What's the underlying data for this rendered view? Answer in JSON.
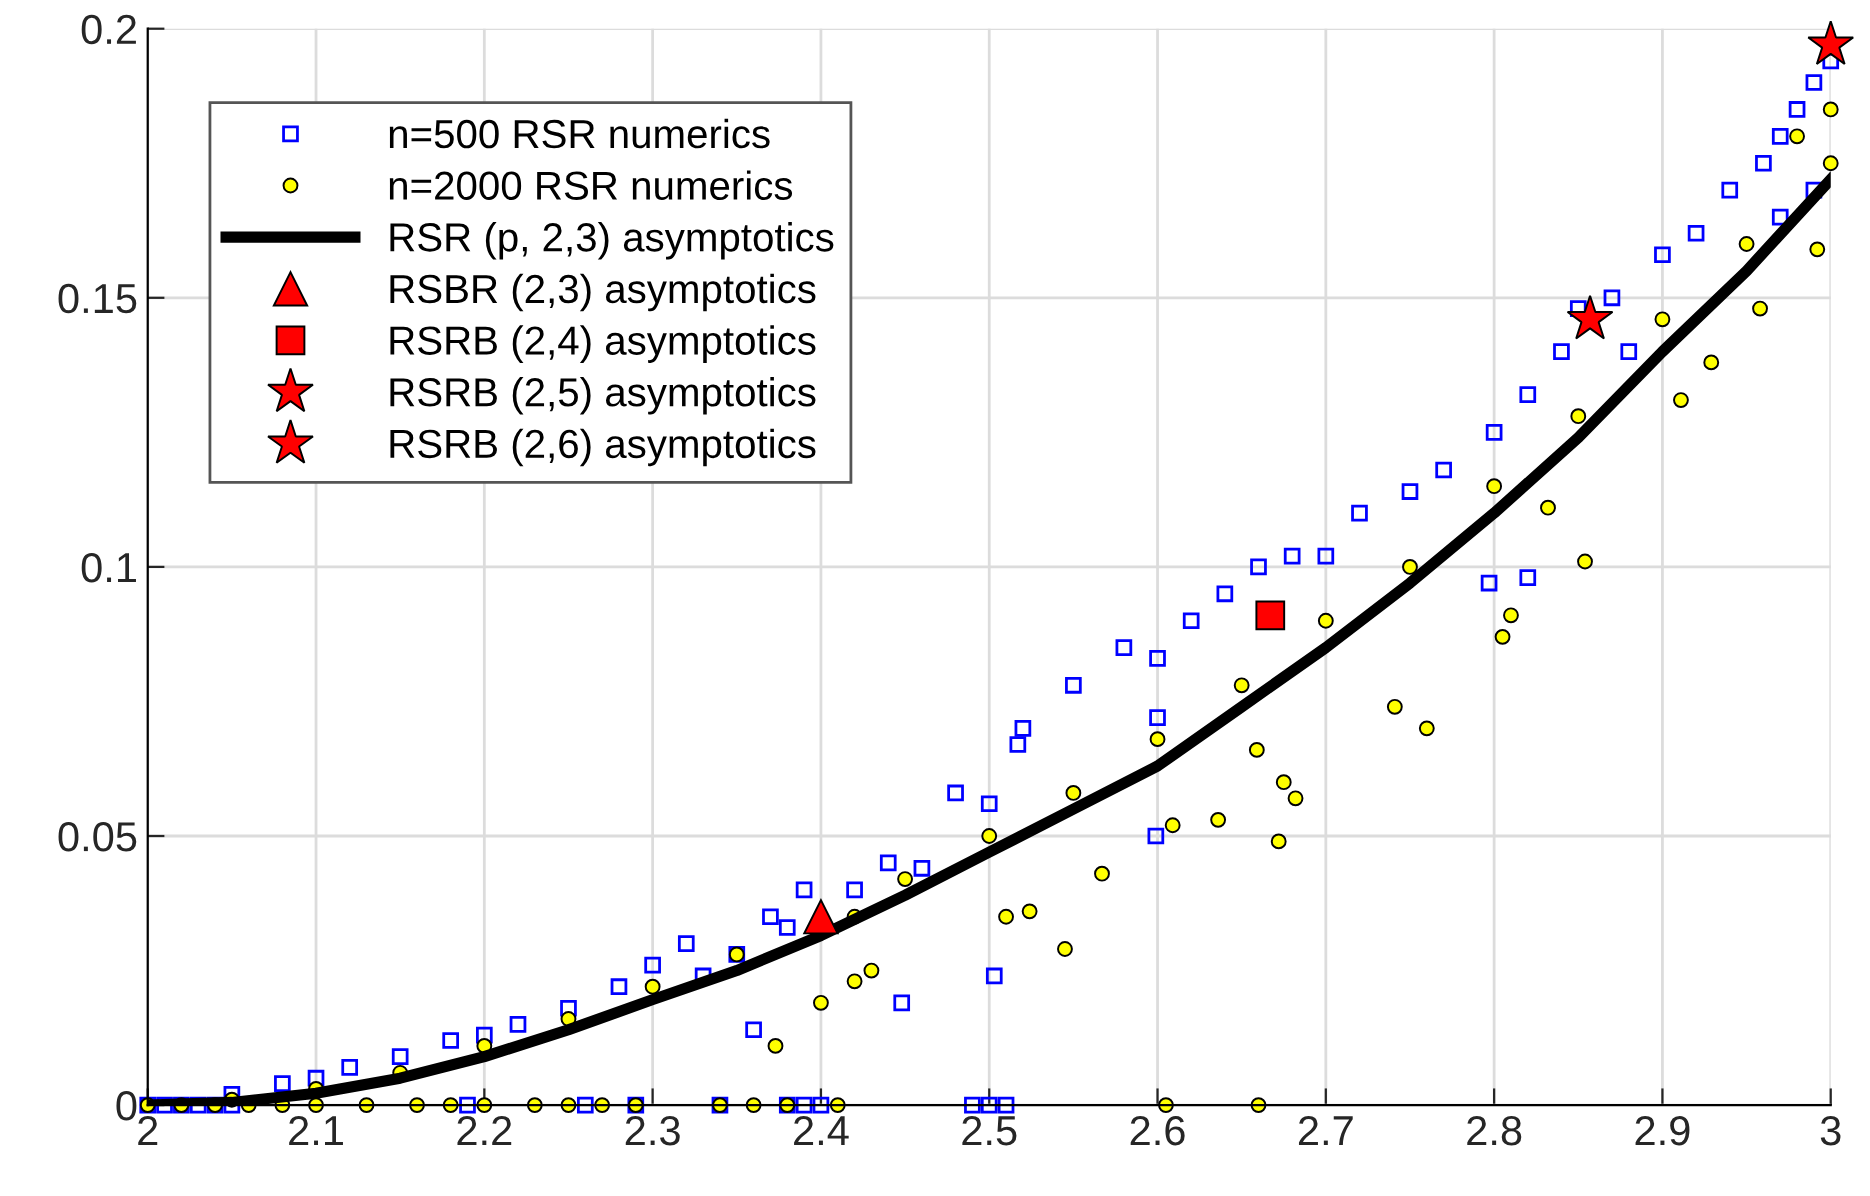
{
  "chart_data": {
    "type": "scatter",
    "xlim": [
      2,
      3
    ],
    "ylim": [
      0,
      0.2
    ],
    "xticks": [
      2,
      2.1,
      2.2,
      2.3,
      2.4,
      2.5,
      2.6,
      2.7,
      2.8,
      2.9,
      3
    ],
    "yticks": [
      0,
      0.05,
      0.1,
      0.15,
      0.2
    ],
    "grid": true,
    "legend": "top left",
    "series": [
      {
        "name": "n=500 RSR numerics",
        "marker": "square",
        "color": "#0000ff",
        "x": [
          2.0,
          2.01,
          2.02,
          2.03,
          2.04,
          2.05,
          2.19,
          2.26,
          2.29,
          2.34,
          2.38,
          2.39,
          2.4,
          2.49,
          2.5,
          2.51,
          2.05,
          2.08,
          2.1,
          2.12,
          2.15,
          2.18,
          2.2,
          2.22,
          2.25,
          2.28,
          2.3,
          2.32,
          2.33,
          2.35,
          2.36,
          2.37,
          2.38,
          2.39,
          2.42,
          2.44,
          2.448,
          2.46,
          2.48,
          2.5,
          2.517,
          2.52,
          2.503,
          2.55,
          2.58,
          2.6,
          2.62,
          2.6,
          2.599,
          2.64,
          2.66,
          2.68,
          2.7,
          2.72,
          2.75,
          2.77,
          2.797,
          2.82,
          2.8,
          2.82,
          2.84,
          2.85,
          2.87,
          2.88,
          2.9,
          2.92,
          2.94,
          2.96,
          2.97,
          2.98,
          2.99,
          3.0,
          2.97,
          2.99
        ],
        "values": [
          0,
          0,
          0,
          0,
          0,
          0,
          0,
          0,
          0,
          0,
          0,
          0,
          0,
          0,
          0,
          0,
          0.002,
          0.004,
          0.005,
          0.007,
          0.009,
          0.012,
          0.013,
          0.015,
          0.018,
          0.022,
          0.026,
          0.03,
          0.024,
          0.028,
          0.014,
          0.035,
          0.033,
          0.04,
          0.04,
          0.045,
          0.019,
          0.044,
          0.058,
          0.056,
          0.067,
          0.07,
          0.024,
          0.078,
          0.085,
          0.083,
          0.09,
          0.072,
          0.05,
          0.095,
          0.1,
          0.102,
          0.102,
          0.11,
          0.114,
          0.118,
          0.097,
          0.098,
          0.125,
          0.132,
          0.14,
          0.148,
          0.15,
          0.14,
          0.158,
          0.162,
          0.17,
          0.175,
          0.18,
          0.185,
          0.19,
          0.194,
          0.165,
          0.17
        ]
      },
      {
        "name": "n=2000 RSR numerics",
        "marker": "circle",
        "color": "#ffff00",
        "x": [
          2.0,
          2.02,
          2.04,
          2.06,
          2.08,
          2.1,
          2.13,
          2.16,
          2.18,
          2.2,
          2.23,
          2.25,
          2.27,
          2.29,
          2.34,
          2.36,
          2.38,
          2.41,
          2.605,
          2.66,
          2.05,
          2.1,
          2.15,
          2.2,
          2.25,
          2.3,
          2.35,
          2.42,
          2.45,
          2.5,
          2.55,
          2.6,
          2.65,
          2.7,
          2.75,
          2.8,
          2.85,
          2.9,
          2.95,
          3.0,
          2.98,
          3.0,
          2.373,
          2.4,
          2.42,
          2.43,
          2.51,
          2.545,
          2.524,
          2.567,
          2.609,
          2.636,
          2.672,
          2.682,
          2.675,
          2.659,
          2.741,
          2.76,
          2.805,
          2.81,
          2.854,
          2.832,
          2.929,
          2.911,
          2.992,
          2.958
        ],
        "values": [
          0,
          0,
          0,
          0,
          0,
          0,
          0,
          0,
          0,
          0,
          0,
          0,
          0,
          0,
          0,
          0,
          0,
          0,
          0,
          0,
          0.001,
          0.003,
          0.006,
          0.011,
          0.016,
          0.022,
          0.028,
          0.035,
          0.042,
          0.05,
          0.058,
          0.068,
          0.078,
          0.09,
          0.1,
          0.115,
          0.128,
          0.146,
          0.16,
          0.175,
          0.18,
          0.185,
          0.011,
          0.019,
          0.023,
          0.025,
          0.035,
          0.029,
          0.036,
          0.043,
          0.052,
          0.053,
          0.049,
          0.057,
          0.06,
          0.066,
          0.074,
          0.07,
          0.087,
          0.091,
          0.101,
          0.111,
          0.138,
          0.131,
          0.159,
          0.148
        ]
      },
      {
        "name": "RSR (p, 2,3) asymptotics",
        "type": "line",
        "marker": "none",
        "color": "#000000",
        "x": [
          2,
          2.05,
          2.1,
          2.15,
          2.2,
          2.25,
          2.3,
          2.35,
          2.4,
          2.45,
          2.5,
          2.55,
          2.6,
          2.65,
          2.7,
          2.75,
          2.8,
          2.85,
          2.9,
          2.95,
          3
        ],
        "values": [
          0,
          0.0005,
          0.0022,
          0.005,
          0.009,
          0.014,
          0.0196,
          0.025,
          0.0315,
          0.039,
          0.047,
          0.055,
          0.063,
          0.074,
          0.085,
          0.097,
          0.11,
          0.124,
          0.14,
          0.155,
          0.172
        ]
      },
      {
        "name": "RSBR (2,3) asymptotics",
        "marker": "triangle",
        "color": "#ff0000",
        "x": [
          2.4
        ],
        "values": [
          0.035
        ]
      },
      {
        "name": "RSRB (2,4) asymptotics",
        "marker": "square",
        "color": "#ff0000",
        "x": [
          2.667
        ],
        "values": [
          0.091
        ]
      },
      {
        "name": "RSRB (2,5) asymptotics",
        "marker": "star",
        "color": "#ff0000",
        "x": [
          2.857
        ],
        "values": [
          0.146
        ]
      },
      {
        "name": "RSRB (2,6) asymptotics",
        "marker": "star",
        "color": "#ff0000",
        "x": [
          3.0
        ],
        "values": [
          0.197
        ]
      }
    ]
  }
}
